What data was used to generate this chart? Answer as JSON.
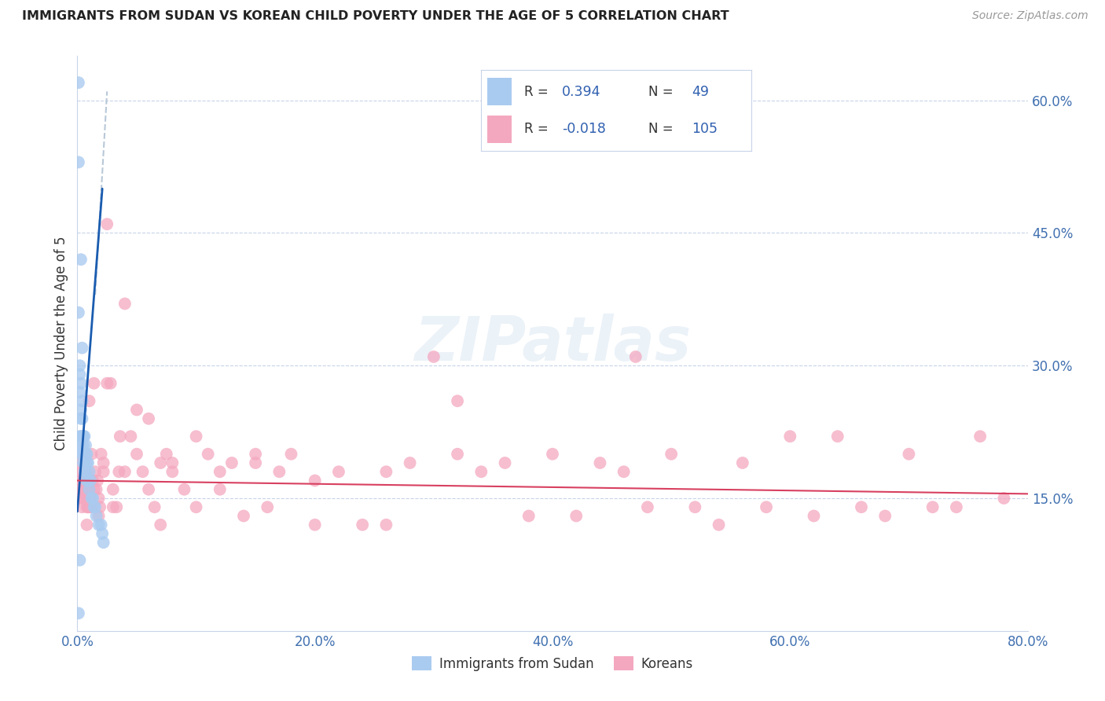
{
  "title": "IMMIGRANTS FROM SUDAN VS KOREAN CHILD POVERTY UNDER THE AGE OF 5 CORRELATION CHART",
  "source": "Source: ZipAtlas.com",
  "ylabel": "Child Poverty Under the Age of 5",
  "xlim": [
    0.0,
    0.8
  ],
  "ylim": [
    0.0,
    0.65
  ],
  "xticks": [
    0.0,
    0.1,
    0.2,
    0.3,
    0.4,
    0.5,
    0.6,
    0.7,
    0.8
  ],
  "xticklabels": [
    "0.0%",
    "",
    "20.0%",
    "",
    "40.0%",
    "",
    "60.0%",
    "",
    "80.0%"
  ],
  "yticks_right": [
    0.15,
    0.3,
    0.45,
    0.6
  ],
  "ytick_labels_right": [
    "15.0%",
    "30.0%",
    "45.0%",
    "60.0%"
  ],
  "R_sudan": 0.394,
  "N_sudan": 49,
  "R_korean": -0.018,
  "N_korean": 105,
  "sudan_color": "#aacbf0",
  "korean_color": "#f4a8c0",
  "sudan_trend_color": "#1a5cb0",
  "korean_trend_color": "#d84060",
  "watermark_text": "ZIPatlas",
  "background_color": "#ffffff",
  "grid_color": "#c8d4e8",
  "legend_text_color": "#3060b0",
  "legend_R_color_sudan": "#3060b0",
  "legend_N_color_sudan": "#3060b0",
  "legend_R_color_korean": "#3060b0",
  "legend_N_color_korean": "#3060b0",
  "sudan_x": [
    0.001,
    0.001,
    0.001,
    0.002,
    0.002,
    0.002,
    0.002,
    0.002,
    0.003,
    0.003,
    0.003,
    0.003,
    0.003,
    0.003,
    0.003,
    0.004,
    0.004,
    0.004,
    0.004,
    0.005,
    0.005,
    0.005,
    0.005,
    0.005,
    0.006,
    0.006,
    0.006,
    0.006,
    0.007,
    0.007,
    0.007,
    0.008,
    0.008,
    0.008,
    0.009,
    0.009,
    0.01,
    0.01,
    0.011,
    0.012,
    0.013,
    0.014,
    0.015,
    0.016,
    0.018,
    0.02,
    0.021,
    0.022,
    0.001
  ],
  "sudan_y": [
    0.62,
    0.53,
    0.36,
    0.3,
    0.29,
    0.27,
    0.22,
    0.08,
    0.42,
    0.28,
    0.25,
    0.24,
    0.22,
    0.21,
    0.2,
    0.32,
    0.26,
    0.24,
    0.22,
    0.22,
    0.22,
    0.21,
    0.2,
    0.19,
    0.22,
    0.2,
    0.19,
    0.18,
    0.21,
    0.2,
    0.18,
    0.2,
    0.19,
    0.17,
    0.19,
    0.17,
    0.18,
    0.16,
    0.17,
    0.15,
    0.15,
    0.14,
    0.14,
    0.13,
    0.12,
    0.12,
    0.11,
    0.1,
    0.02
  ],
  "korean_x": [
    0.001,
    0.002,
    0.002,
    0.003,
    0.003,
    0.004,
    0.004,
    0.005,
    0.005,
    0.006,
    0.006,
    0.007,
    0.007,
    0.008,
    0.008,
    0.009,
    0.009,
    0.01,
    0.01,
    0.011,
    0.012,
    0.013,
    0.014,
    0.015,
    0.016,
    0.017,
    0.018,
    0.019,
    0.02,
    0.022,
    0.025,
    0.028,
    0.03,
    0.033,
    0.036,
    0.04,
    0.045,
    0.05,
    0.055,
    0.06,
    0.065,
    0.07,
    0.075,
    0.08,
    0.09,
    0.1,
    0.11,
    0.12,
    0.13,
    0.14,
    0.15,
    0.16,
    0.17,
    0.18,
    0.2,
    0.22,
    0.24,
    0.26,
    0.28,
    0.3,
    0.32,
    0.34,
    0.36,
    0.38,
    0.4,
    0.42,
    0.44,
    0.46,
    0.48,
    0.5,
    0.52,
    0.54,
    0.56,
    0.58,
    0.6,
    0.62,
    0.64,
    0.66,
    0.68,
    0.7,
    0.72,
    0.74,
    0.76,
    0.78,
    0.014,
    0.025,
    0.035,
    0.05,
    0.07,
    0.01,
    0.008,
    0.012,
    0.018,
    0.022,
    0.03,
    0.04,
    0.06,
    0.08,
    0.1,
    0.12,
    0.15,
    0.2,
    0.26,
    0.32,
    0.47
  ],
  "korean_y": [
    0.19,
    0.17,
    0.15,
    0.18,
    0.16,
    0.17,
    0.14,
    0.18,
    0.16,
    0.17,
    0.15,
    0.17,
    0.15,
    0.16,
    0.14,
    0.16,
    0.14,
    0.16,
    0.14,
    0.15,
    0.2,
    0.17,
    0.16,
    0.18,
    0.16,
    0.17,
    0.15,
    0.14,
    0.2,
    0.18,
    0.46,
    0.28,
    0.16,
    0.14,
    0.22,
    0.37,
    0.22,
    0.2,
    0.18,
    0.16,
    0.14,
    0.12,
    0.2,
    0.18,
    0.16,
    0.14,
    0.2,
    0.18,
    0.19,
    0.13,
    0.19,
    0.14,
    0.18,
    0.2,
    0.17,
    0.18,
    0.12,
    0.18,
    0.19,
    0.31,
    0.2,
    0.18,
    0.19,
    0.13,
    0.2,
    0.13,
    0.19,
    0.18,
    0.14,
    0.2,
    0.14,
    0.12,
    0.19,
    0.14,
    0.22,
    0.13,
    0.22,
    0.14,
    0.13,
    0.2,
    0.14,
    0.14,
    0.22,
    0.15,
    0.28,
    0.28,
    0.18,
    0.25,
    0.19,
    0.26,
    0.12,
    0.14,
    0.13,
    0.19,
    0.14,
    0.18,
    0.24,
    0.19,
    0.22,
    0.16,
    0.2,
    0.12,
    0.12,
    0.26,
    0.31
  ]
}
